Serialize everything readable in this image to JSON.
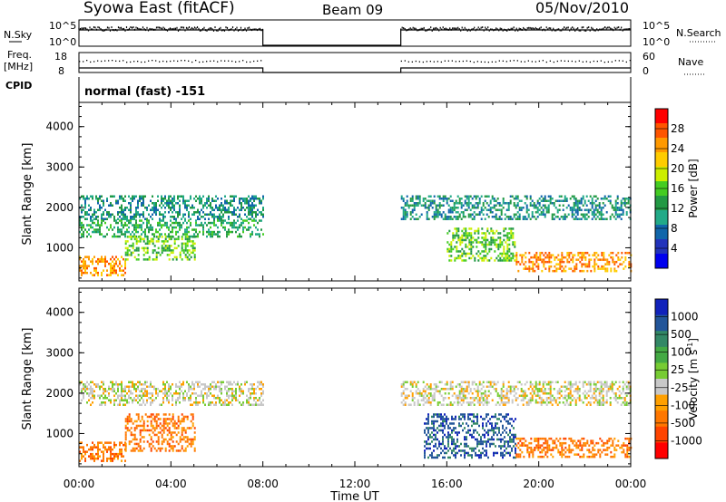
{
  "header": {
    "title": "Syowa East (fitACF)",
    "beam": "Beam 09",
    "date": "05/Nov/2010"
  },
  "panels": {
    "nsky": {
      "label": "N.Sky",
      "left_ticks": [
        "10^5",
        "10^0"
      ],
      "right_ticks": [
        "10^5",
        "10^0"
      ],
      "right_label": "N.Search"
    },
    "freq": {
      "label": "Freq.",
      "unit": "[MHz]",
      "left_ticks": [
        "18",
        "8"
      ],
      "right_ticks": [
        "60",
        "0"
      ],
      "right_label": "Nave"
    },
    "cpid": {
      "label": "CPID",
      "mode_text": "normal (fast) -151"
    }
  },
  "axes": {
    "y_label": "Slant Range [km]",
    "y_ticks": [
      "4000",
      "3000",
      "2000",
      "1000"
    ],
    "x_label": "Time UT",
    "x_ticks": [
      "00:00",
      "04:00",
      "08:00",
      "12:00",
      "16:00",
      "20:00",
      "00:00"
    ]
  },
  "colorbars": {
    "power": {
      "label": "Power [dB]",
      "ticks": [
        "28",
        "24",
        "20",
        "16",
        "12",
        "8",
        "4"
      ],
      "colors": [
        "#ff0000",
        "#ff5500",
        "#ff9900",
        "#ffcc00",
        "#ccee00",
        "#44cc22",
        "#229944",
        "#22aa88",
        "#1166aa",
        "#2233bb",
        "#0000ee"
      ]
    },
    "velocity": {
      "label": "Velocity [m s",
      "label_sup": "-1",
      "label_end": "]",
      "ticks": [
        "1000",
        "500",
        "100",
        "25",
        "-25",
        "-100",
        "-500",
        "-1000"
      ],
      "colors": [
        "#1122bb",
        "#225599",
        "#338866",
        "#44aa44",
        "#77cc33",
        "#c8c8c8",
        "#ffa000",
        "#ff7700",
        "#ff4400",
        "#ff0000"
      ]
    }
  },
  "chart_data": [
    {
      "type": "heatmap",
      "title": "Power",
      "xlabel": "Time UT",
      "ylabel": "Slant Range [km]",
      "xlim": [
        0,
        24
      ],
      "ylim": [
        180,
        4600
      ],
      "data_gap_hours": [
        8,
        14
      ],
      "regions": [
        {
          "t0": 0.0,
          "t1": 8.0,
          "r0": 1700,
          "r1": 2300,
          "level": 8
        },
        {
          "t0": 0.0,
          "t1": 8.0,
          "r0": 1300,
          "r1": 1700,
          "level": 12
        },
        {
          "t0": 0.0,
          "t1": 2.0,
          "r0": 300,
          "r1": 800,
          "level": 24
        },
        {
          "t0": 2.0,
          "t1": 5.0,
          "r0": 700,
          "r1": 1300,
          "level": 16
        },
        {
          "t0": 14.0,
          "t1": 24.0,
          "r0": 1700,
          "r1": 2300,
          "level": 8
        },
        {
          "t0": 16.0,
          "t1": 19.0,
          "r0": 700,
          "r1": 1500,
          "level": 16
        },
        {
          "t0": 19.0,
          "t1": 24.0,
          "r0": 400,
          "r1": 900,
          "level": 24
        }
      ]
    },
    {
      "type": "heatmap",
      "title": "Velocity",
      "xlabel": "Time UT",
      "ylabel": "Slant Range [km]",
      "xlim": [
        0,
        24
      ],
      "ylim": [
        180,
        4600
      ],
      "data_gap_hours": [
        8,
        14
      ],
      "regions": [
        {
          "t0": 0.0,
          "t1": 8.0,
          "r0": 1700,
          "r1": 2300,
          "level": 0
        },
        {
          "t0": 0.0,
          "t1": 2.0,
          "r0": 300,
          "r1": 800,
          "level": -200
        },
        {
          "t0": 2.0,
          "t1": 5.0,
          "r0": 600,
          "r1": 1500,
          "level": -200
        },
        {
          "t0": 14.0,
          "t1": 24.0,
          "r0": 1700,
          "r1": 2300,
          "level": 0
        },
        {
          "t0": 15.0,
          "t1": 19.0,
          "r0": 400,
          "r1": 1500,
          "level": 500
        },
        {
          "t0": 19.0,
          "t1": 24.0,
          "r0": 400,
          "r1": 900,
          "level": -200
        }
      ]
    }
  ]
}
